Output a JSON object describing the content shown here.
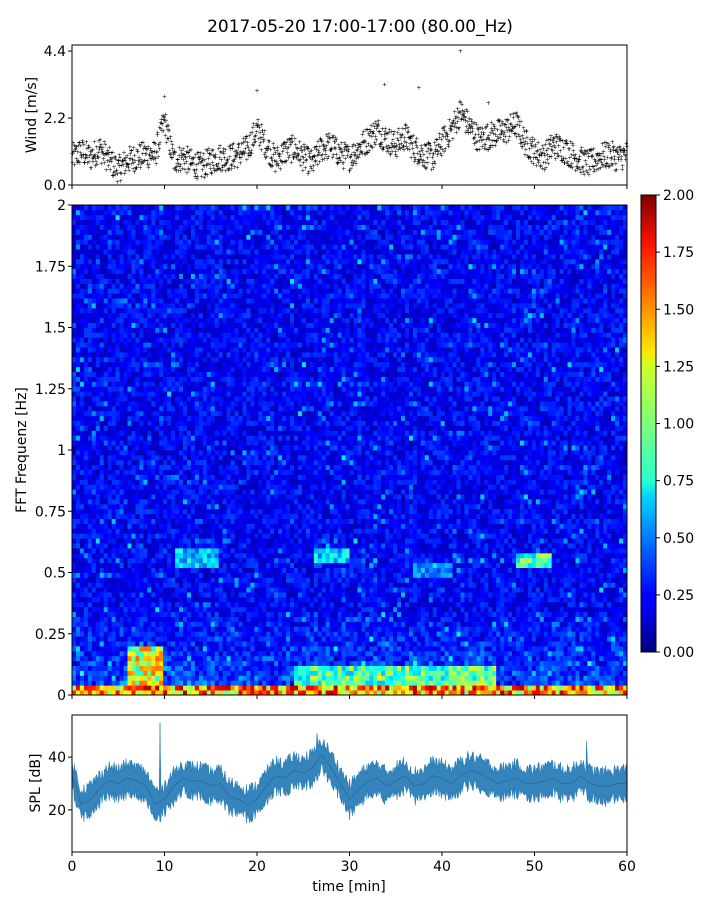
{
  "title": "2017-05-20 17:00-17:00 (80.00_Hz)",
  "chart_data": [
    {
      "type": "scatter",
      "name": "wind",
      "ylabel": "Wind [m/s]",
      "ylim": [
        0,
        4.6
      ],
      "xlim": [
        0,
        60
      ],
      "yticks": [
        0.0,
        2.2,
        4.4
      ],
      "ytick_labels": [
        "0.0",
        "2.2",
        "4.4"
      ],
      "marker_color": "#1f77b4",
      "profile": [
        [
          0,
          0.9
        ],
        [
          1,
          1.1
        ],
        [
          2,
          0.9
        ],
        [
          3,
          1.2
        ],
        [
          4,
          0.8
        ],
        [
          5,
          0.5
        ],
        [
          6,
          0.8
        ],
        [
          7,
          0.9
        ],
        [
          8,
          1.0
        ],
        [
          9,
          1.0
        ],
        [
          10,
          2.1
        ],
        [
          11,
          0.8
        ],
        [
          12,
          0.9
        ],
        [
          13,
          0.7
        ],
        [
          14,
          0.6
        ],
        [
          15,
          0.8
        ],
        [
          16,
          0.9
        ],
        [
          17,
          0.9
        ],
        [
          18,
          1.0
        ],
        [
          19,
          1.2
        ],
        [
          20,
          1.8
        ],
        [
          21,
          1.3
        ],
        [
          22,
          0.8
        ],
        [
          23,
          1.1
        ],
        [
          24,
          1.2
        ],
        [
          25,
          0.9
        ],
        [
          26,
          0.7
        ],
        [
          27,
          1.2
        ],
        [
          28,
          1.3
        ],
        [
          29,
          1.0
        ],
        [
          30,
          0.9
        ],
        [
          31,
          1.2
        ],
        [
          32,
          1.5
        ],
        [
          33,
          1.8
        ],
        [
          34,
          1.5
        ],
        [
          35,
          1.3
        ],
        [
          36,
          1.6
        ],
        [
          37,
          1.2
        ],
        [
          38,
          1.0
        ],
        [
          39,
          0.9
        ],
        [
          40,
          1.4
        ],
        [
          41,
          1.8
        ],
        [
          42,
          2.4
        ],
        [
          43,
          1.9
        ],
        [
          44,
          1.5
        ],
        [
          45,
          1.6
        ],
        [
          46,
          1.7
        ],
        [
          47,
          1.8
        ],
        [
          48,
          2.0
        ],
        [
          49,
          1.4
        ],
        [
          50,
          1.1
        ],
        [
          51,
          0.9
        ],
        [
          52,
          1.3
        ],
        [
          53,
          1.2
        ],
        [
          54,
          1.0
        ],
        [
          55,
          0.8
        ],
        [
          56,
          0.7
        ],
        [
          57,
          0.9
        ],
        [
          58,
          1.0
        ],
        [
          59,
          0.9
        ],
        [
          60,
          1.0
        ]
      ],
      "peaks": [
        [
          42.0,
          4.4
        ],
        [
          10.0,
          2.9
        ],
        [
          20.0,
          3.1
        ],
        [
          33.8,
          3.3
        ],
        [
          37.5,
          3.2
        ],
        [
          45.0,
          2.7
        ]
      ]
    },
    {
      "type": "heatmap",
      "name": "spectrogram",
      "ylabel": "FFT Frequenz [Hz]",
      "ylim": [
        0,
        2
      ],
      "xlim": [
        0,
        60
      ],
      "yticks": [
        0,
        0.25,
        0.5,
        0.75,
        1,
        1.25,
        1.5,
        1.75,
        2
      ],
      "ytick_labels": [
        "0",
        "0.25",
        "0.5",
        "0.75",
        "1",
        "1.25",
        "1.5",
        "1.75",
        "2"
      ],
      "colormap": "jet",
      "colorbar_range": [
        0.0,
        2.0
      ],
      "colorbar_ticks": [
        "0.00",
        "0.25",
        "0.50",
        "0.75",
        "1.00",
        "1.25",
        "1.50",
        "1.75",
        "2.00"
      ],
      "colorbar_values": [
        0.0,
        0.25,
        0.5,
        0.75,
        1.0,
        1.25,
        1.5,
        1.75,
        2.0
      ],
      "time_bins": 140,
      "freq_bins": 100,
      "background_level": 0.25,
      "hotspots": [
        {
          "t": [
            6,
            10
          ],
          "f": [
            0.0,
            0.2
          ],
          "level": 1.3
        },
        {
          "t": [
            0,
            60
          ],
          "f": [
            0.0,
            0.03
          ],
          "level": 1.6
        },
        {
          "t": [
            11,
            16
          ],
          "f": [
            0.52,
            0.6
          ],
          "level": 0.7
        },
        {
          "t": [
            26,
            30
          ],
          "f": [
            0.55,
            0.6
          ],
          "level": 0.75
        },
        {
          "t": [
            48,
            52
          ],
          "f": [
            0.52,
            0.58
          ],
          "level": 0.95
        },
        {
          "t": [
            37,
            41
          ],
          "f": [
            0.48,
            0.53
          ],
          "level": 0.6
        },
        {
          "t": [
            24,
            46
          ],
          "f": [
            0.0,
            0.12
          ],
          "level": 1.0
        }
      ]
    },
    {
      "type": "line",
      "name": "spl",
      "ylabel": "SPL [dB]",
      "xlabel": "time [min]",
      "xlim": [
        0,
        60
      ],
      "ylim": [
        4,
        56
      ],
      "yticks": [
        20,
        40
      ],
      "ytick_labels": [
        "20",
        "40"
      ],
      "xticks": [
        0,
        10,
        20,
        30,
        40,
        50,
        60
      ],
      "xtick_labels": [
        "0",
        "10",
        "20",
        "30",
        "40",
        "50",
        "60"
      ],
      "line_color": "#1f77b4",
      "profile": [
        [
          0,
          33
        ],
        [
          1,
          22
        ],
        [
          2,
          24
        ],
        [
          3,
          28
        ],
        [
          4,
          31
        ],
        [
          5,
          30
        ],
        [
          6,
          32
        ],
        [
          7,
          31
        ],
        [
          8,
          29
        ],
        [
          9,
          22
        ],
        [
          10,
          24
        ],
        [
          11,
          29
        ],
        [
          12,
          32
        ],
        [
          13,
          31
        ],
        [
          14,
          31
        ],
        [
          15,
          29
        ],
        [
          16,
          30
        ],
        [
          17,
          25
        ],
        [
          18,
          24
        ],
        [
          19,
          22
        ],
        [
          20,
          24
        ],
        [
          21,
          29
        ],
        [
          22,
          33
        ],
        [
          23,
          32
        ],
        [
          24,
          35
        ],
        [
          25,
          34
        ],
        [
          26,
          36
        ],
        [
          27,
          41
        ],
        [
          28,
          36
        ],
        [
          29,
          30
        ],
        [
          30,
          24
        ],
        [
          31,
          28
        ],
        [
          32,
          31
        ],
        [
          33,
          32
        ],
        [
          34,
          29
        ],
        [
          35,
          31
        ],
        [
          36,
          33
        ],
        [
          37,
          29
        ],
        [
          38,
          30
        ],
        [
          39,
          33
        ],
        [
          40,
          32
        ],
        [
          41,
          30
        ],
        [
          42,
          33
        ],
        [
          43,
          35
        ],
        [
          44,
          34
        ],
        [
          45,
          32
        ],
        [
          46,
          30
        ],
        [
          47,
          31
        ],
        [
          48,
          32
        ],
        [
          49,
          30
        ],
        [
          50,
          30
        ],
        [
          51,
          31
        ],
        [
          52,
          32
        ],
        [
          53,
          30
        ],
        [
          54,
          30
        ],
        [
          55,
          33
        ],
        [
          56,
          30
        ],
        [
          57,
          29
        ],
        [
          58,
          29
        ],
        [
          59,
          30
        ],
        [
          60,
          30
        ]
      ],
      "peaks": [
        [
          26.5,
          49
        ],
        [
          9.5,
          53
        ],
        [
          55.6,
          46
        ]
      ],
      "band_halfwidth": 6
    }
  ]
}
